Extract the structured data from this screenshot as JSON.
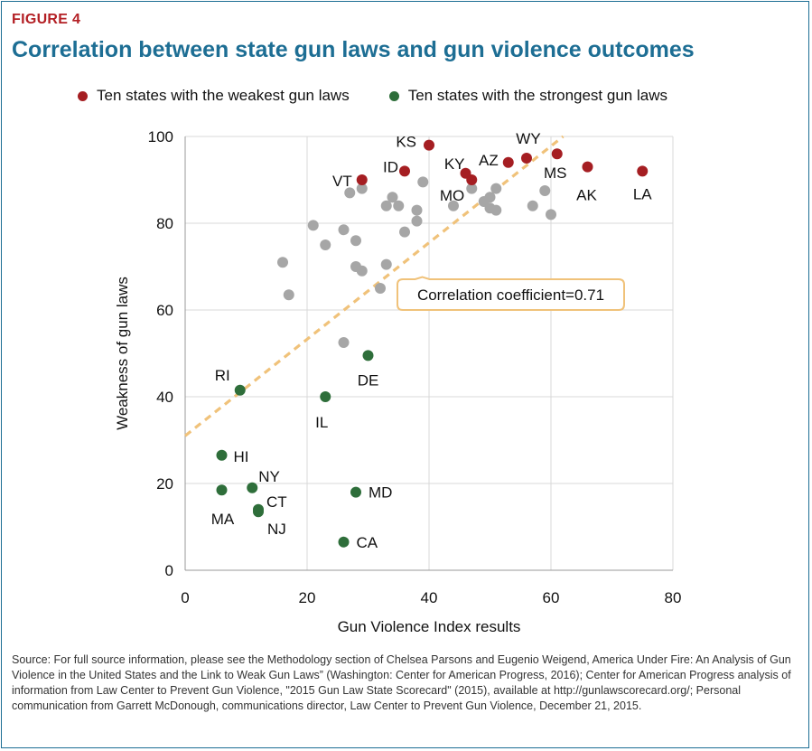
{
  "figure_label": "FIGURE 4",
  "title": "Correlation between state gun laws and gun violence outcomes",
  "source": "Source: For full source information, please see the Methodology section of Chelsea Parsons and Eugenio Weigend, America Under Fire: An Analysis of Gun Violence in the United States and the Link to Weak Gun Laws” (Washington: Center for American Progress, 2016); Center for American Progress analysis of information from Law Center to Prevent Gun Violence, \"2015 Gun Law State Scorecard\" (2015), available at http://gunlawscorecard.org/; Personal communication from Garrett McDonough, communications director, Law Center to Prevent Gun Violence, December 21, 2015.",
  "chart_data": {
    "type": "scatter",
    "xlabel": "Gun Violence Index results",
    "ylabel": "Weakness of gun laws",
    "xlim": [
      0,
      80
    ],
    "ylim": [
      0,
      100
    ],
    "xticks": [
      0,
      20,
      40,
      60,
      80
    ],
    "yticks": [
      0,
      20,
      40,
      60,
      80,
      100
    ],
    "grid": true,
    "legend_position": "top",
    "annotation": "Correlation coefficient=0.71",
    "trendline": {
      "from": [
        0,
        31
      ],
      "to": [
        62,
        100
      ],
      "color": "#f0c27a"
    },
    "series": [
      {
        "name": "Ten states with the weakest gun laws",
        "color": "#a51e22",
        "points": [
          {
            "label": "VT",
            "x": 29,
            "y": 90
          },
          {
            "label": "ID",
            "x": 36,
            "y": 92
          },
          {
            "label": "KS",
            "x": 40,
            "y": 98
          },
          {
            "label": "KY",
            "x": 46,
            "y": 91.5
          },
          {
            "label": "MO",
            "x": 47,
            "y": 90
          },
          {
            "label": "AZ",
            "x": 53,
            "y": 94
          },
          {
            "label": "WY",
            "x": 56,
            "y": 95
          },
          {
            "label": "MS",
            "x": 61,
            "y": 96
          },
          {
            "label": "AK",
            "x": 66,
            "y": 93
          },
          {
            "label": "LA",
            "x": 75,
            "y": 92
          }
        ]
      },
      {
        "name": "Ten states with the strongest gun laws",
        "color": "#2e6e3a",
        "points": [
          {
            "label": "RI",
            "x": 9,
            "y": 41.5
          },
          {
            "label": "HI",
            "x": 6,
            "y": 26.5
          },
          {
            "label": "MA",
            "x": 6,
            "y": 18.5
          },
          {
            "label": "NY",
            "x": 11,
            "y": 19
          },
          {
            "label": "CT",
            "x": 12,
            "y": 14
          },
          {
            "label": "NJ",
            "x": 12,
            "y": 13.5
          },
          {
            "label": "IL",
            "x": 23,
            "y": 40
          },
          {
            "label": "DE",
            "x": 30,
            "y": 49.5
          },
          {
            "label": "MD",
            "x": 28,
            "y": 18
          },
          {
            "label": "CA",
            "x": 26,
            "y": 6.5
          }
        ]
      },
      {
        "color": "#a6a6a6",
        "points": [
          {
            "x": 16,
            "y": 71
          },
          {
            "x": 17,
            "y": 63.5
          },
          {
            "x": 21,
            "y": 79.5
          },
          {
            "x": 23,
            "y": 75
          },
          {
            "x": 26,
            "y": 78.5
          },
          {
            "x": 28,
            "y": 76
          },
          {
            "x": 28,
            "y": 70
          },
          {
            "x": 29,
            "y": 69
          },
          {
            "x": 27,
            "y": 87
          },
          {
            "x": 29,
            "y": 88
          },
          {
            "x": 33,
            "y": 84
          },
          {
            "x": 34,
            "y": 86
          },
          {
            "x": 35,
            "y": 84
          },
          {
            "x": 33,
            "y": 70.5
          },
          {
            "x": 32,
            "y": 65
          },
          {
            "x": 26,
            "y": 52.5
          },
          {
            "x": 36,
            "y": 78
          },
          {
            "x": 38,
            "y": 80.5
          },
          {
            "x": 38,
            "y": 83
          },
          {
            "x": 39,
            "y": 89.5
          },
          {
            "x": 44,
            "y": 84
          },
          {
            "x": 47,
            "y": 88
          },
          {
            "x": 49,
            "y": 85
          },
          {
            "x": 50,
            "y": 86
          },
          {
            "x": 51,
            "y": 88
          },
          {
            "x": 50,
            "y": 83.5
          },
          {
            "x": 51,
            "y": 83
          },
          {
            "x": 57,
            "y": 84
          },
          {
            "x": 59,
            "y": 87.5
          },
          {
            "x": 60,
            "y": 82
          }
        ]
      }
    ]
  }
}
